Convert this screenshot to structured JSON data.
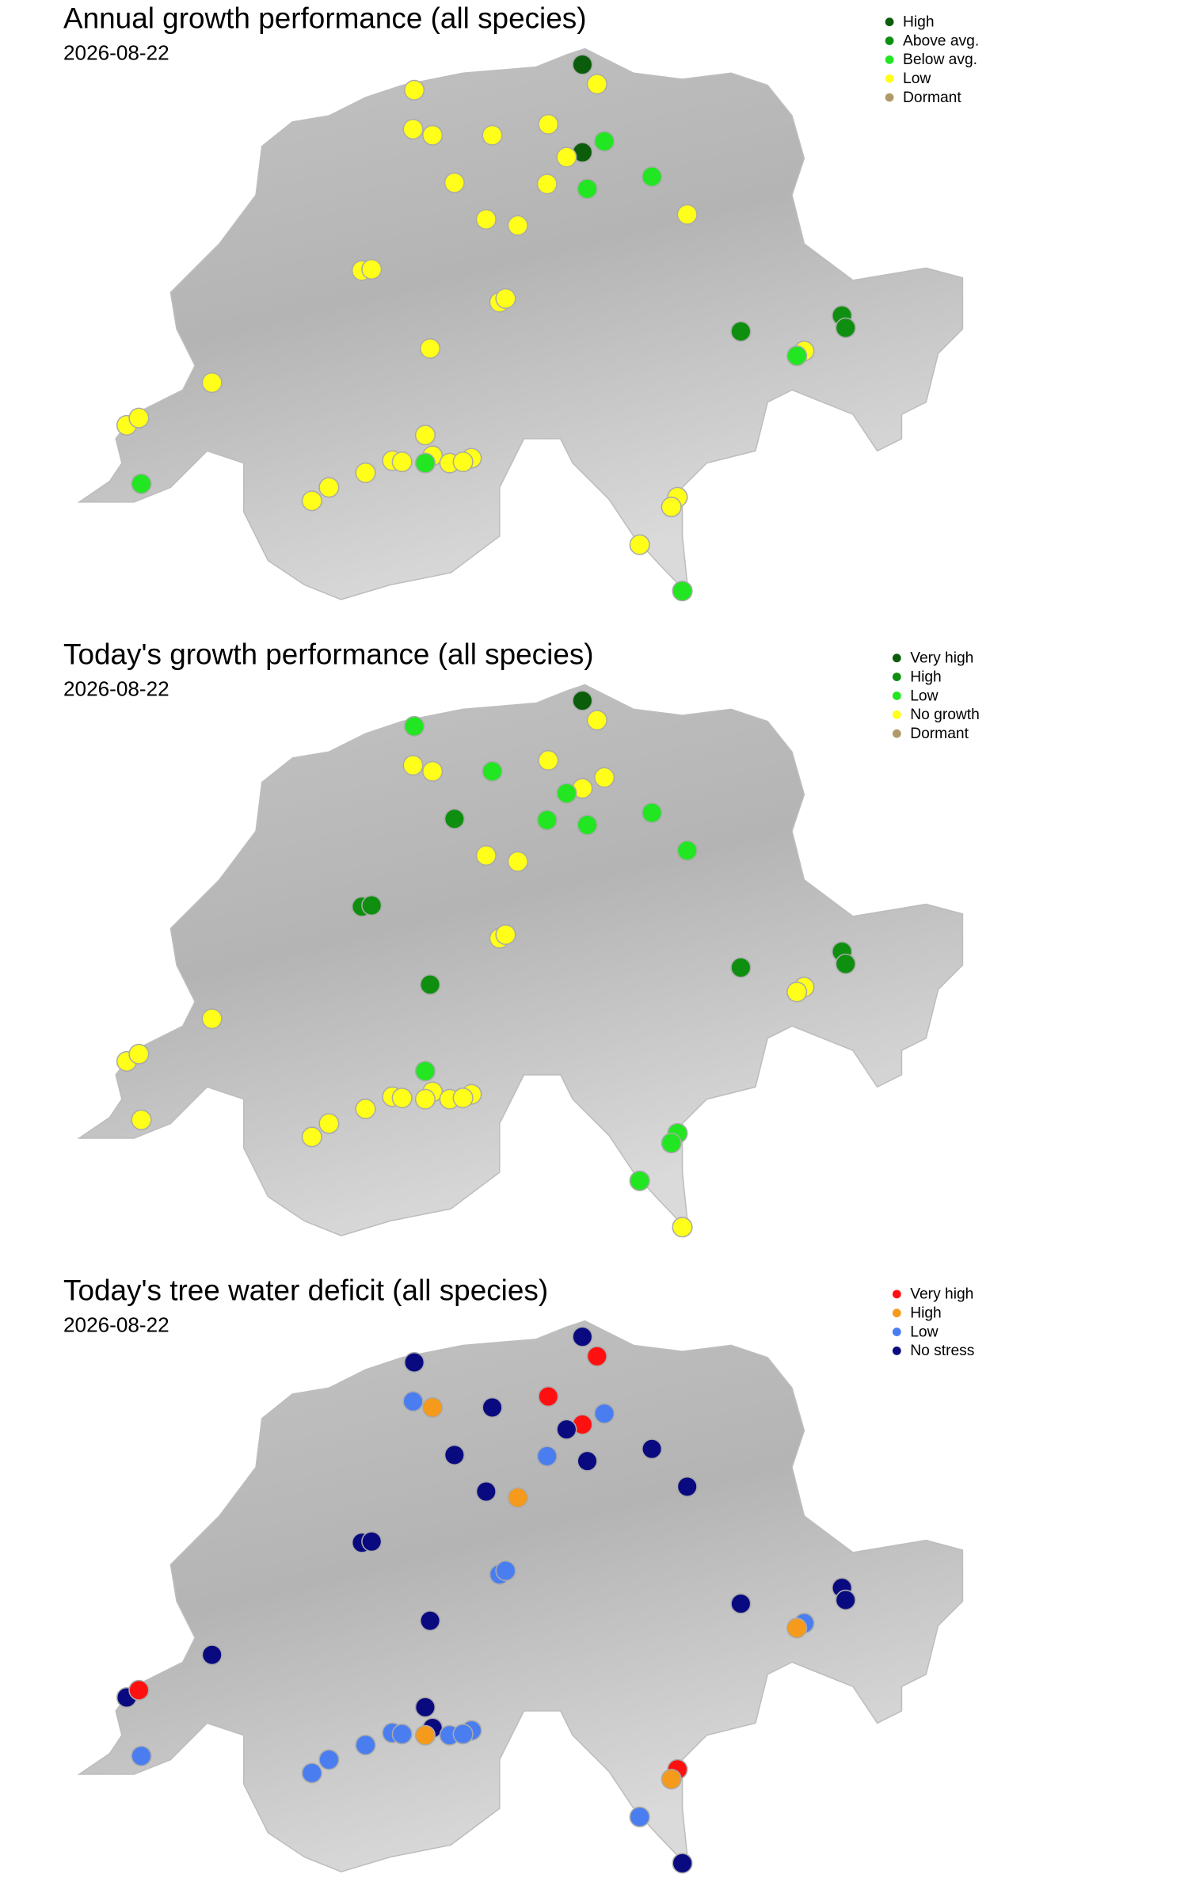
{
  "maps": [
    {
      "title": "Annual growth performance (all species)",
      "date": "2026-08-22",
      "legend": [
        {
          "label": "High",
          "color": "#0b5d0b"
        },
        {
          "label": "Above avg.",
          "color": "#0f8f0f"
        },
        {
          "label": "Below avg.",
          "color": "#22e622"
        },
        {
          "label": "Low",
          "color": "#ffff1a"
        },
        {
          "label": "Dormant",
          "color": "#b09a6a"
        }
      ]
    },
    {
      "title": "Today's growth performance (all species)",
      "date": "2026-08-22",
      "legend": [
        {
          "label": "Very high",
          "color": "#0b5d0b"
        },
        {
          "label": "High",
          "color": "#0f8f0f"
        },
        {
          "label": "Low",
          "color": "#22e622"
        },
        {
          "label": "No growth",
          "color": "#ffff1a"
        },
        {
          "label": "Dormant",
          "color": "#b09a6a"
        }
      ]
    },
    {
      "title": "Today's tree water deficit (all species)",
      "date": "2026-08-22",
      "legend": [
        {
          "label": "Very high",
          "color": "#ff1010"
        },
        {
          "label": "High",
          "color": "#f59a1a"
        },
        {
          "label": "Low",
          "color": "#4a7ef0"
        },
        {
          "label": "No stress",
          "color": "#0a0a80"
        }
      ]
    }
  ]
}
